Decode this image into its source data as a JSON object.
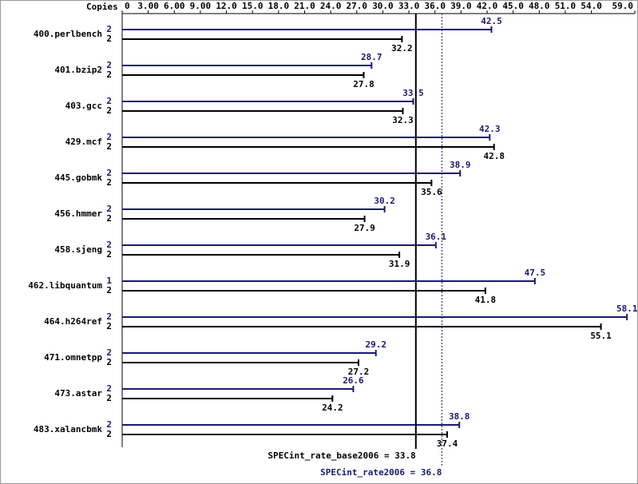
{
  "chart_data": {
    "type": "bar",
    "axis_label": "Copies",
    "categories": [
      "400.perlbench",
      "401.bzip2",
      "403.gcc",
      "429.mcf",
      "445.gobmk",
      "456.hmmer",
      "458.sjeng",
      "462.libquantum",
      "464.h264ref",
      "471.omnetpp",
      "473.astar",
      "483.xalancbmk"
    ],
    "series": [
      {
        "color": "#191970",
        "copies": [
          2,
          2,
          2,
          2,
          2,
          2,
          2,
          1,
          2,
          2,
          2,
          2
        ],
        "values": [
          42.5,
          28.7,
          33.5,
          42.3,
          38.9,
          30.2,
          36.1,
          47.5,
          58.1,
          29.2,
          26.6,
          38.8
        ]
      },
      {
        "color": "#000000",
        "copies": [
          2,
          2,
          2,
          2,
          2,
          2,
          2,
          2,
          2,
          2,
          2,
          2
        ],
        "values": [
          32.2,
          27.8,
          32.3,
          42.8,
          35.6,
          27.9,
          31.9,
          41.8,
          55.1,
          27.2,
          24.2,
          37.4
        ]
      }
    ],
    "xlim": [
      0,
      59
    ],
    "xticks": [
      0,
      {
        "value": 3,
        "label": "3.00"
      },
      {
        "value": 6,
        "label": "6.00"
      },
      {
        "value": 9,
        "label": "9.00"
      },
      {
        "value": 12,
        "label": "12.0"
      },
      {
        "value": 15,
        "label": "15.0"
      },
      {
        "value": 18,
        "label": "18.0"
      },
      {
        "value": 21,
        "label": "21.0"
      },
      {
        "value": 24,
        "label": "24.0"
      },
      {
        "value": 27,
        "label": "27.0"
      },
      {
        "value": 30,
        "label": "30.0"
      },
      {
        "value": 33,
        "label": "33.0"
      },
      {
        "value": 36,
        "label": "36.0"
      },
      {
        "value": 39,
        "label": "39.0"
      },
      {
        "value": 42,
        "label": "42.0"
      },
      {
        "value": 45,
        "label": "45.0"
      },
      {
        "value": 48,
        "label": "48.0"
      },
      {
        "value": 51,
        "label": "51.0"
      },
      {
        "value": 54,
        "label": "54.0"
      },
      {
        "value": 59,
        "label": "59.0"
      }
    ],
    "reference_lines": [
      {
        "label": "SPECint_rate_base2006 = 33.8",
        "value": 33.8,
        "color": "#000000",
        "style": "solid"
      },
      {
        "label": "SPECint_rate2006 = 36.8",
        "value": 36.8,
        "color": "#191970",
        "style": "dotted"
      }
    ]
  }
}
